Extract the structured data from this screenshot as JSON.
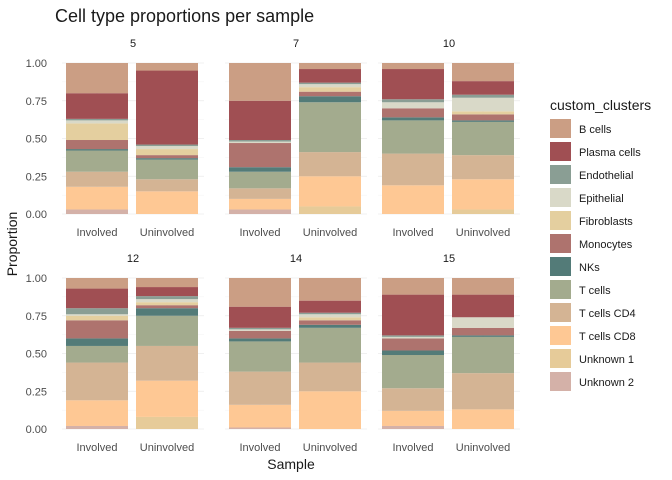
{
  "chart_data": {
    "type": "bar",
    "stacked": true,
    "title": "Cell type proportions per sample",
    "xlabel": "Sample",
    "ylabel": "Proportion",
    "ylim": [
      0,
      1
    ],
    "yticks": [
      "0.00",
      "0.25",
      "0.50",
      "0.75",
      "1.00"
    ],
    "ytick_values": [
      0,
      0.25,
      0.5,
      0.75,
      1
    ],
    "categories": [
      "Involved",
      "Uninvolved"
    ],
    "grid": true,
    "legend_position": "right",
    "legend_title": "custom_clusters",
    "stack_order": [
      "Unknown 2",
      "Unknown 1",
      "T cells CD8",
      "T cells CD4",
      "T cells",
      "NKs",
      "Monocytes",
      "Fibroblasts",
      "Epithelial",
      "Endothelial",
      "Plasma cells",
      "B cells"
    ],
    "legend": [
      {
        "name": "B cells",
        "color": "#CB9E84"
      },
      {
        "name": "Plasma cells",
        "color": "#A04F53"
      },
      {
        "name": "Endothelial",
        "color": "#8A9E94"
      },
      {
        "name": "Epithelial",
        "color": "#D9D9C8"
      },
      {
        "name": "Fibroblasts",
        "color": "#E4CF9F"
      },
      {
        "name": "Monocytes",
        "color": "#AE736E"
      },
      {
        "name": "NKs",
        "color": "#537B78"
      },
      {
        "name": "T cells",
        "color": "#A3AB8E"
      },
      {
        "name": "T cells CD4",
        "color": "#D4B494"
      },
      {
        "name": "T cells CD8",
        "color": "#FEC894"
      },
      {
        "name": "Unknown 1",
        "color": "#E6CB99"
      },
      {
        "name": "Unknown 2",
        "color": "#D4B1A8"
      }
    ],
    "facets": [
      {
        "label": "5",
        "bars": [
          {
            "category": "Involved",
            "values": {
              "Unknown 2": 0.03,
              "Unknown 1": 0.0,
              "T cells CD8": 0.15,
              "T cells CD4": 0.1,
              "T cells": 0.14,
              "NKs": 0.01,
              "Monocytes": 0.06,
              "Fibroblasts": 0.11,
              "Epithelial": 0.02,
              "Endothelial": 0.01,
              "Plasma cells": 0.17,
              "B cells": 0.2
            }
          },
          {
            "category": "Uninvolved",
            "values": {
              "Unknown 2": 0.0,
              "Unknown 1": 0.0,
              "T cells CD8": 0.15,
              "T cells CD4": 0.08,
              "T cells": 0.13,
              "NKs": 0.01,
              "Monocytes": 0.02,
              "Fibroblasts": 0.04,
              "Epithelial": 0.02,
              "Endothelial": 0.01,
              "Plasma cells": 0.49,
              "B cells": 0.05
            }
          }
        ]
      },
      {
        "label": "7",
        "bars": [
          {
            "category": "Involved",
            "values": {
              "Unknown 2": 0.03,
              "Unknown 1": 0.0,
              "T cells CD8": 0.07,
              "T cells CD4": 0.07,
              "T cells": 0.11,
              "NKs": 0.03,
              "Monocytes": 0.16,
              "Fibroblasts": 0.0,
              "Epithelial": 0.01,
              "Endothelial": 0.01,
              "Plasma cells": 0.26,
              "B cells": 0.25
            }
          },
          {
            "category": "Uninvolved",
            "values": {
              "Unknown 2": 0.0,
              "Unknown 1": 0.05,
              "T cells CD8": 0.2,
              "T cells CD4": 0.16,
              "T cells": 0.33,
              "NKs": 0.04,
              "Monocytes": 0.03,
              "Fibroblasts": 0.03,
              "Epithelial": 0.02,
              "Endothelial": 0.01,
              "Plasma cells": 0.09,
              "B cells": 0.04
            }
          }
        ]
      },
      {
        "label": "10",
        "bars": [
          {
            "category": "Involved",
            "values": {
              "Unknown 2": 0.0,
              "Unknown 1": 0.0,
              "T cells CD8": 0.19,
              "T cells CD4": 0.21,
              "T cells": 0.22,
              "NKs": 0.02,
              "Monocytes": 0.06,
              "Fibroblasts": 0.0,
              "Epithelial": 0.04,
              "Endothelial": 0.02,
              "Plasma cells": 0.2,
              "B cells": 0.04
            }
          },
          {
            "category": "Uninvolved",
            "values": {
              "Unknown 2": 0.0,
              "Unknown 1": 0.03,
              "T cells CD8": 0.2,
              "T cells CD4": 0.16,
              "T cells": 0.22,
              "NKs": 0.01,
              "Monocytes": 0.04,
              "Fibroblasts": 0.02,
              "Epithelial": 0.09,
              "Endothelial": 0.02,
              "Plasma cells": 0.09,
              "B cells": 0.12
            }
          }
        ]
      },
      {
        "label": "12",
        "bars": [
          {
            "category": "Involved",
            "values": {
              "Unknown 2": 0.02,
              "Unknown 1": 0.0,
              "T cells CD8": 0.17,
              "T cells CD4": 0.25,
              "T cells": 0.11,
              "NKs": 0.05,
              "Monocytes": 0.12,
              "Fibroblasts": 0.03,
              "Epithelial": 0.01,
              "Endothelial": 0.04,
              "Plasma cells": 0.13,
              "B cells": 0.07
            }
          },
          {
            "category": "Uninvolved",
            "values": {
              "Unknown 2": 0.0,
              "Unknown 1": 0.08,
              "T cells CD8": 0.24,
              "T cells CD4": 0.23,
              "T cells": 0.2,
              "NKs": 0.05,
              "Monocytes": 0.02,
              "Fibroblasts": 0.02,
              "Epithelial": 0.02,
              "Endothelial": 0.02,
              "Plasma cells": 0.06,
              "B cells": 0.06
            }
          }
        ]
      },
      {
        "label": "14",
        "bars": [
          {
            "category": "Involved",
            "values": {
              "Unknown 2": 0.01,
              "Unknown 1": 0.0,
              "T cells CD8": 0.15,
              "T cells CD4": 0.22,
              "T cells": 0.2,
              "NKs": 0.02,
              "Monocytes": 0.05,
              "Fibroblasts": 0.0,
              "Epithelial": 0.01,
              "Endothelial": 0.01,
              "Plasma cells": 0.14,
              "B cells": 0.19
            }
          },
          {
            "category": "Uninvolved",
            "values": {
              "Unknown 2": 0.0,
              "Unknown 1": 0.0,
              "T cells CD8": 0.25,
              "T cells CD4": 0.19,
              "T cells": 0.23,
              "NKs": 0.02,
              "Monocytes": 0.03,
              "Fibroblasts": 0.02,
              "Epithelial": 0.02,
              "Endothelial": 0.01,
              "Plasma cells": 0.08,
              "B cells": 0.15
            }
          }
        ]
      },
      {
        "label": "15",
        "bars": [
          {
            "category": "Involved",
            "values": {
              "Unknown 2": 0.02,
              "Unknown 1": 0.0,
              "T cells CD8": 0.1,
              "T cells CD4": 0.15,
              "T cells": 0.22,
              "NKs": 0.03,
              "Monocytes": 0.08,
              "Fibroblasts": 0.0,
              "Epithelial": 0.01,
              "Endothelial": 0.01,
              "Plasma cells": 0.27,
              "B cells": 0.11
            }
          },
          {
            "category": "Uninvolved",
            "values": {
              "Unknown 2": 0.0,
              "Unknown 1": 0.0,
              "T cells CD8": 0.13,
              "T cells CD4": 0.24,
              "T cells": 0.24,
              "NKs": 0.01,
              "Monocytes": 0.05,
              "Fibroblasts": 0.0,
              "Epithelial": 0.07,
              "Endothelial": 0.0,
              "Plasma cells": 0.15,
              "B cells": 0.11
            }
          }
        ]
      }
    ]
  }
}
